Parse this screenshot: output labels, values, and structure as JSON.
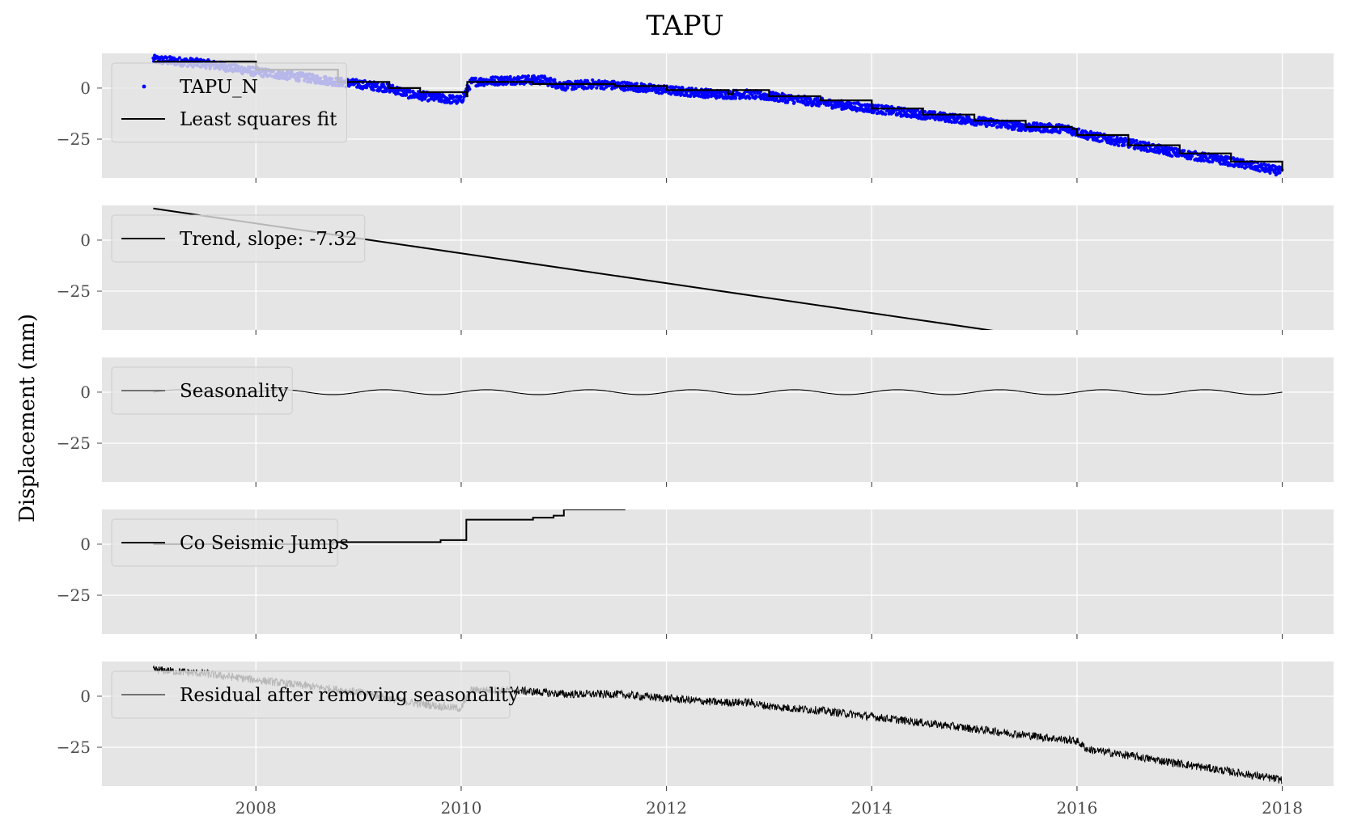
{
  "title": "TAPU",
  "ylabel": "Displacement (mm)",
  "chart_data": [
    {
      "type": "scatter+line",
      "panel": "observations",
      "xlim": [
        2006.5,
        2018.5
      ],
      "ylim": [
        -44,
        17
      ],
      "yticks": [
        0,
        -25
      ],
      "xticks": [
        2008,
        2010,
        2012,
        2014,
        2016,
        2018
      ],
      "grid": true,
      "legend": "top-left",
      "series": [
        {
          "name": "TAPU_N",
          "kind": "points",
          "color": "#0000ff",
          "x": [
            2007.0,
            2007.5,
            2008.0,
            2008.5,
            2008.8,
            2009.0,
            2009.3,
            2009.5,
            2009.8,
            2010.0,
            2010.1,
            2010.5,
            2010.8,
            2011.0,
            2011.3,
            2011.6,
            2012.0,
            2012.5,
            2012.8,
            2013.0,
            2013.5,
            2014.0,
            2014.5,
            2015.0,
            2015.5,
            2015.9,
            2016.1,
            2016.5,
            2017.0,
            2017.5,
            2018.0
          ],
          "y": [
            14,
            12,
            8,
            5,
            3,
            2,
            0,
            -3,
            -5,
            -6,
            3,
            4,
            4,
            1,
            2,
            1,
            -1,
            -3,
            -3,
            -4,
            -7,
            -10,
            -13,
            -16,
            -19,
            -20,
            -23,
            -27,
            -32,
            -36,
            -41
          ]
        },
        {
          "name": "Least squares fit",
          "kind": "step-line",
          "color": "#000000",
          "x": [
            2007.0,
            2008.0,
            2008.8,
            2009.3,
            2009.6,
            2010.05,
            2010.06,
            2010.7,
            2011.5,
            2012.0,
            2012.6,
            2012.65,
            2013.0,
            2013.5,
            2014.0,
            2014.5,
            2015.0,
            2015.5,
            2015.95,
            2016.0,
            2016.5,
            2017.0,
            2017.5,
            2018.0
          ],
          "y": [
            13,
            9,
            3,
            0,
            -2,
            -4,
            3,
            2,
            1,
            -1,
            -3,
            -1,
            -4,
            -6,
            -10,
            -13,
            -16,
            -19,
            -20,
            -23,
            -28,
            -32,
            -36,
            -41
          ]
        }
      ]
    },
    {
      "type": "line",
      "panel": "trend",
      "ylim": [
        -44,
        17
      ],
      "series": [
        {
          "name": "Trend, slope: -7.32",
          "slope": -7.32,
          "x": [
            2007.0,
            2018.0
          ],
          "y": [
            15.5,
            -65.0
          ]
        }
      ]
    },
    {
      "type": "line",
      "panel": "seasonality",
      "ylim": [
        -44,
        17
      ],
      "series": [
        {
          "name": "Seasonality",
          "amplitude": 1.2,
          "period_years": 1.0,
          "x_start": 2007.0,
          "x_end": 2018.0,
          "sample_step": 0.02
        }
      ]
    },
    {
      "type": "line",
      "panel": "jumps",
      "ylim": [
        -44,
        17
      ],
      "series": [
        {
          "name": "Co Seismic Jumps",
          "kind": "step-line",
          "x": [
            2007.0,
            2008.2,
            2008.75,
            2009.8,
            2010.05,
            2010.7,
            2010.9,
            2011.0,
            2011.6
          ],
          "y": [
            0,
            0,
            1,
            2,
            12,
            13,
            14,
            17,
            17
          ]
        }
      ]
    },
    {
      "type": "line",
      "panel": "residual",
      "ylim": [
        -44,
        17
      ],
      "series": [
        {
          "name": "Residual after removing seasonality",
          "x": [
            2007.0,
            2007.5,
            2008.0,
            2008.5,
            2009.0,
            2009.5,
            2009.8,
            2010.0,
            2010.1,
            2010.5,
            2011.0,
            2011.5,
            2012.0,
            2012.5,
            2012.8,
            2013.0,
            2013.5,
            2014.0,
            2014.5,
            2015.0,
            2015.5,
            2016.0,
            2016.1,
            2016.5,
            2017.0,
            2017.5,
            2018.0
          ],
          "y": [
            13,
            11,
            8,
            5,
            2,
            -3,
            -5,
            -6,
            3,
            3,
            1,
            1,
            -1,
            -3,
            -3,
            -5,
            -7,
            -10,
            -13,
            -16,
            -19,
            -22,
            -26,
            -29,
            -33,
            -37,
            -41
          ]
        }
      ]
    }
  ]
}
